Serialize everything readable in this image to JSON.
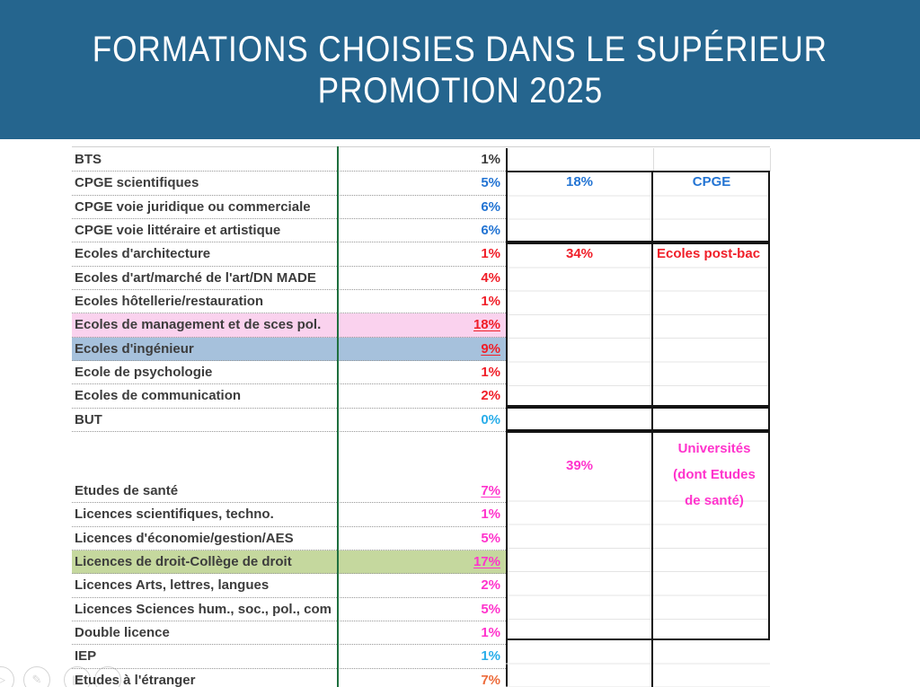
{
  "title": {
    "line1": "FORMATIONS CHOISIES DANS LE SUPÉRIEUR",
    "line2": "PROMOTION 2025"
  },
  "colors": {
    "banner": "#25658E",
    "grid_green": "#1E6F3E",
    "text": {
      "dark": "#3A3A3A",
      "blue": "#2374D3",
      "red": "#F01E28",
      "magenta": "#FF33CC",
      "cyan": "#29ADE9",
      "orange": "#ED6B3B"
    },
    "highlights": {
      "pink": "#FAD2EE",
      "blue_gray": "#A6C1DC",
      "green": "#C5D89E"
    }
  },
  "table": {
    "rows": [
      {
        "label": "BTS",
        "value": "1%",
        "color": "dark"
      },
      {
        "label": "CPGE scientifiques",
        "value": "5%",
        "color": "blue"
      },
      {
        "label": "CPGE voie juridique ou commerciale",
        "value": "6%",
        "color": "blue"
      },
      {
        "label": "CPGE voie littéraire et artistique",
        "value": "6%",
        "color": "blue"
      },
      {
        "label": "Ecoles d'architecture",
        "value": "1%",
        "color": "red"
      },
      {
        "label": "Ecoles d'art/marché de l'art/DN MADE",
        "value": "4%",
        "color": "red"
      },
      {
        "label": "Ecoles hôtellerie/restauration",
        "value": "1%",
        "color": "red"
      },
      {
        "label": "Ecoles de management et de sces pol.",
        "value": "18%",
        "color": "red",
        "underline": true,
        "highlight": "pink"
      },
      {
        "label": "Ecoles d'ingénieur",
        "value": "9%",
        "color": "red",
        "underline": true,
        "highlight": "blue_gray"
      },
      {
        "label": "Ecole de psychologie",
        "value": "1%",
        "color": "red"
      },
      {
        "label": "Ecoles de communication",
        "value": "2%",
        "color": "red"
      },
      {
        "label": "BUT",
        "value": "0%",
        "color": "cyan"
      },
      {
        "label": "",
        "value": "",
        "color": "dark",
        "tall": true
      },
      {
        "label": "Etudes de santé",
        "value": "7%",
        "color": "magenta",
        "underline": true
      },
      {
        "label": "Licences scientifiques, techno.",
        "value": "1%",
        "color": "magenta"
      },
      {
        "label": "Licences d'économie/gestion/AES",
        "value": "5%",
        "color": "magenta"
      },
      {
        "label": "Licences de droit-Collège de droit",
        "value": "17%",
        "color": "magenta",
        "underline": true,
        "highlight": "green"
      },
      {
        "label": "Licences Arts, lettres, langues",
        "value": "2%",
        "color": "magenta"
      },
      {
        "label": "Licences Sciences hum., soc., pol., com",
        "value": "5%",
        "color": "magenta"
      },
      {
        "label": "Double licence",
        "value": "1%",
        "color": "magenta"
      },
      {
        "label": "IEP",
        "value": "1%",
        "color": "cyan"
      },
      {
        "label": "Etudes à l'étranger",
        "value": "7%",
        "color": "orange"
      }
    ],
    "groups": {
      "cpge": {
        "value": "18%",
        "label": "CPGE",
        "color": "blue"
      },
      "ecoles": {
        "value": "34%",
        "label": "Ecoles post-bac",
        "color": "red"
      },
      "univ": {
        "value": "39%",
        "label": "Universités (dont Etudes de santé)",
        "color": "magenta"
      }
    }
  },
  "controls": {
    "next_glyph": "▷",
    "pen_glyph": "✎",
    "all_slides_glyph": "▦",
    "magnifier_glyph": "⌕"
  }
}
